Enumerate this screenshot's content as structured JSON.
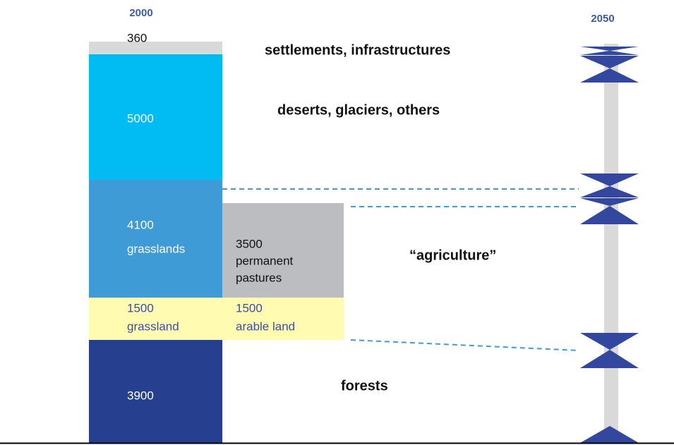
{
  "years": [
    "2000",
    "2050"
  ],
  "segments": [
    {
      "value": 360
    },
    {
      "value": 5000
    },
    {
      "value": 4100,
      "label": "grasslands"
    },
    {
      "value": 1500,
      "label": "grassland"
    },
    {
      "value": 3900
    }
  ],
  "split": [
    {
      "value": 3500,
      "label_lines": [
        "permanent",
        "pastures"
      ]
    },
    {
      "value": 1500,
      "label": "arable land"
    }
  ],
  "categories": [
    "settlements, infrastructures",
    "deserts, glaciers, others",
    "“agriculture”",
    "forests"
  ]
}
